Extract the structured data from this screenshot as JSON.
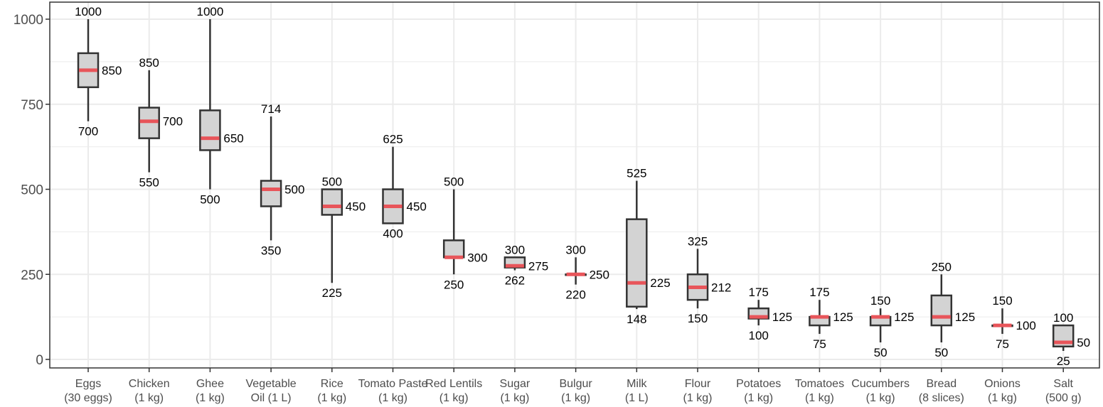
{
  "chart_data": {
    "type": "boxplot",
    "title": "",
    "xlabel": "",
    "ylabel": "",
    "ylim": [
      -25,
      1045
    ],
    "yticks": [
      0,
      250,
      500,
      750,
      1000
    ],
    "grid": true,
    "colors": {
      "box_fill": "#d3d3d3",
      "box_stroke": "#333333",
      "median": "#e8555a",
      "grid": "#ebebeb"
    },
    "categories": [
      {
        "line1": "Eggs",
        "line2": "(30 eggs)",
        "min": 700,
        "q1": 800,
        "median": 850,
        "q3": 900,
        "max": 1000,
        "labels": {
          "max": "1000",
          "median": "850",
          "min": "700"
        }
      },
      {
        "line1": "Chicken",
        "line2": "(1 kg)",
        "min": 550,
        "q1": 650,
        "median": 700,
        "q3": 740,
        "max": 850,
        "labels": {
          "max": "850",
          "median": "700",
          "min": "550"
        }
      },
      {
        "line1": "Ghee",
        "line2": "(1 kg)",
        "min": 500,
        "q1": 615,
        "median": 650,
        "q3": 732,
        "max": 1000,
        "labels": {
          "max": "1000",
          "median": "650",
          "min": "500"
        }
      },
      {
        "line1": "Vegetable",
        "line2": "Oil (1 L)",
        "min": 350,
        "q1": 450,
        "median": 500,
        "q3": 525,
        "max": 714,
        "labels": {
          "max": "714",
          "median": "500",
          "min": "350"
        }
      },
      {
        "line1": "Rice",
        "line2": "(1 kg)",
        "min": 225,
        "q1": 425,
        "median": 450,
        "q3": 500,
        "max": 500,
        "labels": {
          "max": "500",
          "median": "450",
          "min": "225"
        }
      },
      {
        "line1": "Tomato Paste",
        "line2": "(1 kg)",
        "min": 400,
        "q1": 400,
        "median": 450,
        "q3": 500,
        "max": 625,
        "labels": {
          "max": "625",
          "median": "450",
          "min": "400"
        }
      },
      {
        "line1": "Red Lentils",
        "line2": "(1 kg)",
        "min": 250,
        "q1": 300,
        "median": 300,
        "q3": 350,
        "max": 500,
        "labels": {
          "max": "500",
          "median": "300",
          "min": "250"
        }
      },
      {
        "line1": "Sugar",
        "line2": "(1 kg)",
        "min": 262,
        "q1": 270,
        "median": 275,
        "q3": 300,
        "max": 300,
        "labels": {
          "max": "300",
          "median": "275",
          "min": "262"
        }
      },
      {
        "line1": "Bulgur",
        "line2": "(1 kg)",
        "min": 220,
        "q1": 250,
        "median": 250,
        "q3": 250,
        "max": 300,
        "labels": {
          "max": "300",
          "median": "250",
          "min": "220"
        }
      },
      {
        "line1": "Milk",
        "line2": "(1 L)",
        "min": 148,
        "q1": 155,
        "median": 225,
        "q3": 412,
        "max": 525,
        "labels": {
          "max": "525",
          "median": "225",
          "min": "148"
        }
      },
      {
        "line1": "Flour",
        "line2": "(1 kg)",
        "min": 150,
        "q1": 175,
        "median": 212,
        "q3": 250,
        "max": 325,
        "labels": {
          "max": "325",
          "median": "212",
          "min": "150"
        }
      },
      {
        "line1": "Potatoes",
        "line2": "(1 kg)",
        "min": 100,
        "q1": 120,
        "median": 125,
        "q3": 150,
        "max": 175,
        "labels": {
          "max": "175",
          "median": "125",
          "min": "100"
        }
      },
      {
        "line1": "Tomatoes",
        "line2": "(1 kg)",
        "min": 75,
        "q1": 100,
        "median": 125,
        "q3": 125,
        "max": 175,
        "labels": {
          "max": "175",
          "median": "125",
          "min": "75"
        }
      },
      {
        "line1": "Cucumbers",
        "line2": "(1 kg)",
        "min": 50,
        "q1": 100,
        "median": 125,
        "q3": 125,
        "max": 150,
        "labels": {
          "max": "150",
          "median": "125",
          "min": "50"
        }
      },
      {
        "line1": "Bread",
        "line2": "(8 slices)",
        "min": 50,
        "q1": 100,
        "median": 125,
        "q3": 188,
        "max": 250,
        "labels": {
          "max": "250",
          "median": "125",
          "min": "50"
        }
      },
      {
        "line1": "Onions",
        "line2": "(1 kg)",
        "min": 75,
        "q1": 100,
        "median": 100,
        "q3": 100,
        "max": 150,
        "labels": {
          "max": "150",
          "median": "100",
          "min": "75"
        }
      },
      {
        "line1": "Salt",
        "line2": "(500 g)",
        "min": 25,
        "q1": 38,
        "median": 50,
        "q3": 100,
        "max": 100,
        "labels": {
          "max": "100",
          "median": "50",
          "min": "25"
        }
      }
    ]
  }
}
